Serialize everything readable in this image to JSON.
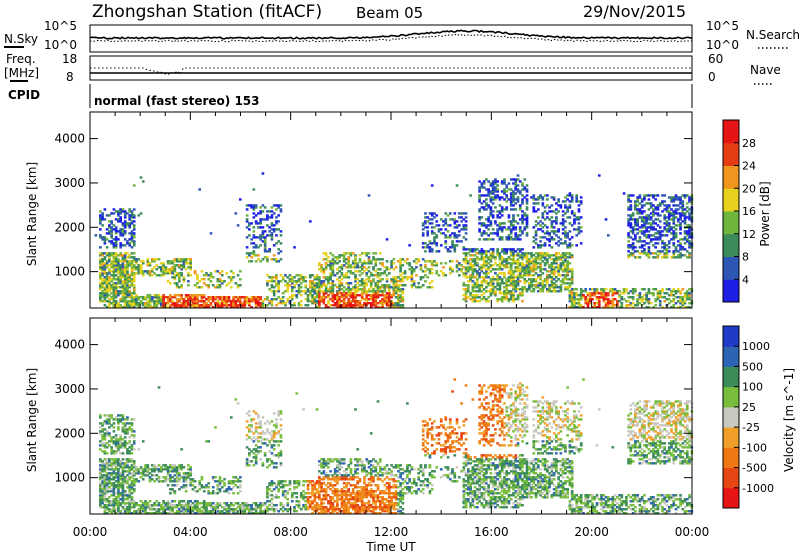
{
  "header": {
    "station": "Zhongshan Station (fitACF)",
    "beam": "Beam 05",
    "date": "29/Nov/2015"
  },
  "noise_panel": {
    "left_label": "N.Sky",
    "left_ticks": [
      "10^5",
      "10^0"
    ],
    "right_ticks": [
      "10^5",
      "10^0"
    ],
    "right_label": "N.Search"
  },
  "freq_panel": {
    "left_label_1": "Freq.",
    "left_label_2": "[MHz]",
    "left_ticks": [
      "18",
      "8"
    ],
    "right_ticks": [
      "60",
      "0"
    ],
    "right_label": "Nave"
  },
  "cpid": {
    "label": "CPID",
    "value": "normal (fast stereo) 153"
  },
  "chart_data": [
    {
      "type": "heatmap",
      "quantity": "Power",
      "ylabel": "Slant Range [km]",
      "yticks": [
        "1000",
        "2000",
        "3000",
        "4000"
      ],
      "ylim": [
        180,
        4600
      ],
      "colorbar_label": "Power [dB]",
      "colorbar_ticks": [
        "4",
        "8",
        "12",
        "16",
        "20",
        "24",
        "28"
      ],
      "colors": [
        "#1e1ee6",
        "#2e56b4",
        "#3b8c5a",
        "#6fb43c",
        "#e6d21e",
        "#f0961e",
        "#e63c14",
        "#e61414"
      ],
      "scale_range": [
        0,
        32
      ]
    },
    {
      "type": "heatmap",
      "quantity": "Velocity",
      "ylabel": "Slant Range [km]",
      "yticks": [
        "1000",
        "2000",
        "3000",
        "4000"
      ],
      "ylim": [
        180,
        4600
      ],
      "colorbar_label": "Velocity [m s^-1]",
      "colorbar_ticks": [
        "1000",
        "500",
        "100",
        "25",
        "-25",
        "-100",
        "-500",
        "-1000"
      ],
      "colors": [
        "#1e3cc8",
        "#2e64b4",
        "#3c8c5a",
        "#78be3c",
        "#c8c8c0",
        "#f0a028",
        "#f07814",
        "#e64614",
        "#e61414"
      ]
    }
  ],
  "time_axis": {
    "xlabel": "Time UT",
    "ticks": [
      "00:00",
      "04:00",
      "08:00",
      "12:00",
      "16:00",
      "20:00",
      "00:00"
    ],
    "range_hours": [
      0,
      24
    ]
  }
}
